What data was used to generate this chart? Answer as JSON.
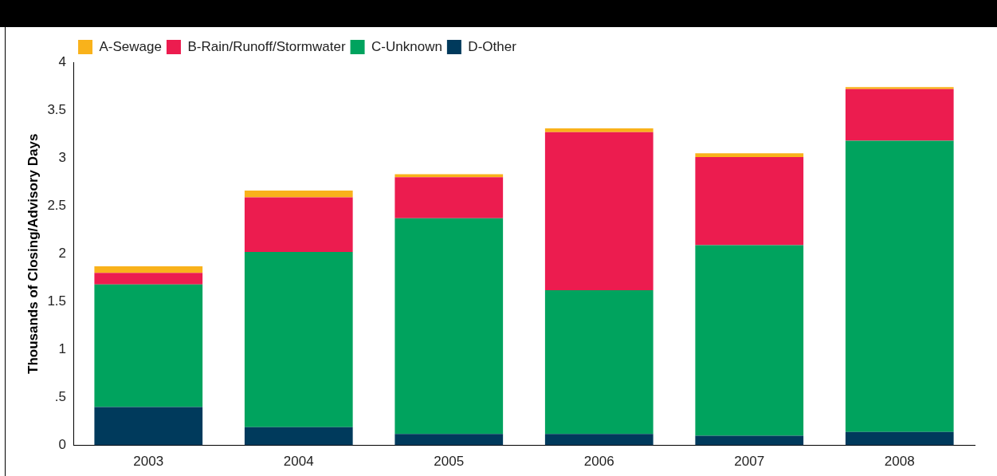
{
  "chart_data": {
    "type": "bar",
    "stacked": true,
    "ylabel": "Thousands of Closing/Advisory Days",
    "categories": [
      "2003",
      "2004",
      "2005",
      "2006",
      "2007",
      "2008"
    ],
    "series": [
      {
        "name": "D-Other",
        "color": "#003a5c",
        "values": [
          0.4,
          0.19,
          0.12,
          0.12,
          0.1,
          0.14
        ]
      },
      {
        "name": "C-Unknown",
        "color": "#00a35e",
        "values": [
          1.28,
          1.83,
          2.25,
          1.5,
          1.99,
          3.04
        ]
      },
      {
        "name": "B-Rain/Runoff/Stormwater",
        "color": "#ec1c4f",
        "values": [
          0.12,
          0.57,
          0.43,
          1.65,
          0.92,
          0.54
        ]
      },
      {
        "name": "A-Sewage",
        "color": "#f9b21b",
        "values": [
          0.07,
          0.07,
          0.03,
          0.04,
          0.04,
          0.02
        ]
      }
    ],
    "ylim": [
      0,
      4
    ],
    "yticks": [
      0,
      {
        "value": 0.5,
        "label": ".5"
      },
      1,
      1.5,
      2,
      2.5,
      3,
      3.5,
      4
    ],
    "grid": false,
    "legend": "top left"
  }
}
